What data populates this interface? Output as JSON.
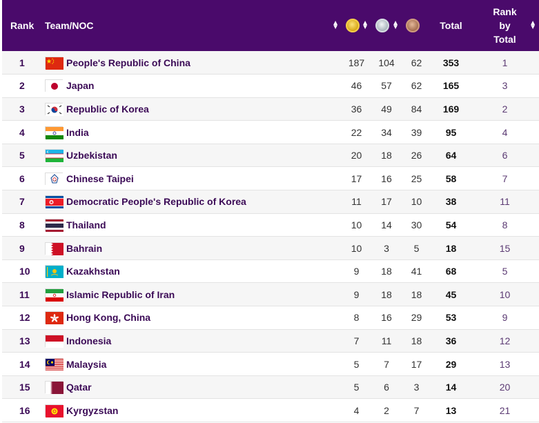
{
  "header": {
    "rank": "Rank",
    "team": "Team/NOC",
    "total": "Total",
    "rank_by_total_line1": "Rank",
    "rank_by_total_line2": "by",
    "rank_by_total_line3": "Total",
    "gold_icon": "gold-medal-icon",
    "silver_icon": "silver-medal-icon",
    "bronze_icon": "bronze-medal-icon"
  },
  "colors": {
    "header_bg": "#4a0a6b",
    "team_text": "#3b0a56"
  },
  "rows": [
    {
      "rank": "1",
      "team": "People's Republic of China",
      "gold": "187",
      "silver": "104",
      "bronze": "62",
      "total": "353",
      "rank_by_total": "1",
      "flag": "china"
    },
    {
      "rank": "2",
      "team": "Japan",
      "gold": "46",
      "silver": "57",
      "bronze": "62",
      "total": "165",
      "rank_by_total": "3",
      "flag": "japan"
    },
    {
      "rank": "3",
      "team": "Republic of Korea",
      "gold": "36",
      "silver": "49",
      "bronze": "84",
      "total": "169",
      "rank_by_total": "2",
      "flag": "korea"
    },
    {
      "rank": "4",
      "team": "India",
      "gold": "22",
      "silver": "34",
      "bronze": "39",
      "total": "95",
      "rank_by_total": "4",
      "flag": "india"
    },
    {
      "rank": "5",
      "team": "Uzbekistan",
      "gold": "20",
      "silver": "18",
      "bronze": "26",
      "total": "64",
      "rank_by_total": "6",
      "flag": "uzbekistan"
    },
    {
      "rank": "6",
      "team": "Chinese Taipei",
      "gold": "17",
      "silver": "16",
      "bronze": "25",
      "total": "58",
      "rank_by_total": "7",
      "flag": "taipei"
    },
    {
      "rank": "7",
      "team": "Democratic People's Republic of Korea",
      "gold": "11",
      "silver": "17",
      "bronze": "10",
      "total": "38",
      "rank_by_total": "11",
      "flag": "dprk"
    },
    {
      "rank": "8",
      "team": "Thailand",
      "gold": "10",
      "silver": "14",
      "bronze": "30",
      "total": "54",
      "rank_by_total": "8",
      "flag": "thailand"
    },
    {
      "rank": "9",
      "team": "Bahrain",
      "gold": "10",
      "silver": "3",
      "bronze": "5",
      "total": "18",
      "rank_by_total": "15",
      "flag": "bahrain"
    },
    {
      "rank": "10",
      "team": "Kazakhstan",
      "gold": "9",
      "silver": "18",
      "bronze": "41",
      "total": "68",
      "rank_by_total": "5",
      "flag": "kazakhstan"
    },
    {
      "rank": "11",
      "team": "Islamic Republic of Iran",
      "gold": "9",
      "silver": "18",
      "bronze": "18",
      "total": "45",
      "rank_by_total": "10",
      "flag": "iran"
    },
    {
      "rank": "12",
      "team": "Hong Kong, China",
      "gold": "8",
      "silver": "16",
      "bronze": "29",
      "total": "53",
      "rank_by_total": "9",
      "flag": "hongkong"
    },
    {
      "rank": "13",
      "team": "Indonesia",
      "gold": "7",
      "silver": "11",
      "bronze": "18",
      "total": "36",
      "rank_by_total": "12",
      "flag": "indonesia"
    },
    {
      "rank": "14",
      "team": "Malaysia",
      "gold": "5",
      "silver": "7",
      "bronze": "17",
      "total": "29",
      "rank_by_total": "13",
      "flag": "malaysia"
    },
    {
      "rank": "15",
      "team": "Qatar",
      "gold": "5",
      "silver": "6",
      "bronze": "3",
      "total": "14",
      "rank_by_total": "20",
      "flag": "qatar"
    },
    {
      "rank": "16",
      "team": "Kyrgyzstan",
      "gold": "4",
      "silver": "2",
      "bronze": "7",
      "total": "13",
      "rank_by_total": "21",
      "flag": "kyrgyzstan"
    }
  ]
}
